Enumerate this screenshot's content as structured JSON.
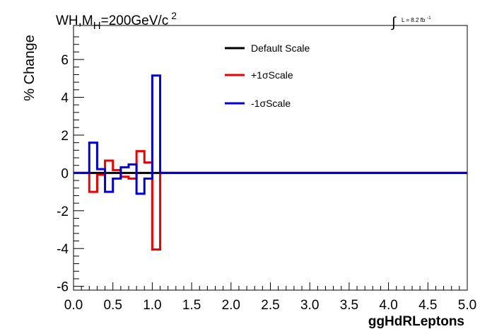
{
  "chart_data": {
    "type": "line",
    "title_main": "WH,M",
    "title_sub": "H",
    "title_rest": "=200GeV/c",
    "title_sup": "2",
    "lumi_symbol": "∫",
    "lumi_text": "L = 8.2 fb",
    "lumi_sup": "-1",
    "ylabel": "% Change",
    "xlabel": "ggHdRLeptons",
    "xlim": [
      0.0,
      5.0
    ],
    "ylim": [
      -6.2,
      7.8
    ],
    "xticks": [
      "0.0",
      "0.5",
      "1.0",
      "1.5",
      "2.0",
      "2.5",
      "3.0",
      "3.5",
      "4.0",
      "4.5",
      "5.0"
    ],
    "yticks": [
      "6",
      "4",
      "2",
      "0",
      "-2",
      "-4",
      "-6"
    ],
    "legend_position": "top-center",
    "series": [
      {
        "name": "Default Scale",
        "color": "#000000",
        "edges": [
          0.0,
          0.1,
          0.2,
          0.3,
          0.4,
          0.5,
          0.6,
          0.7,
          0.8,
          0.9,
          1.0,
          1.1,
          5.0
        ],
        "values": [
          0,
          0,
          0,
          0,
          0,
          0,
          0,
          0,
          0,
          0,
          0,
          0
        ]
      },
      {
        "name": "+1σScale",
        "color": "#ee0000",
        "edges": [
          0.0,
          0.1,
          0.2,
          0.3,
          0.4,
          0.5,
          0.6,
          0.7,
          0.8,
          0.9,
          1.0,
          1.1,
          5.0
        ],
        "values": [
          0,
          0,
          -1.0,
          -0.1,
          0.65,
          0.15,
          -0.2,
          -0.3,
          1.15,
          0.55,
          -4.05,
          0
        ]
      },
      {
        "name": "-1σScale",
        "color": "#0000dd",
        "edges": [
          0.0,
          0.1,
          0.2,
          0.3,
          0.4,
          0.5,
          0.6,
          0.7,
          0.8,
          0.9,
          1.0,
          1.1,
          5.0
        ],
        "values": [
          0,
          0,
          1.6,
          0.2,
          -1.0,
          -0.3,
          0.3,
          0.45,
          -1.1,
          -0.3,
          5.15,
          0
        ]
      }
    ]
  }
}
